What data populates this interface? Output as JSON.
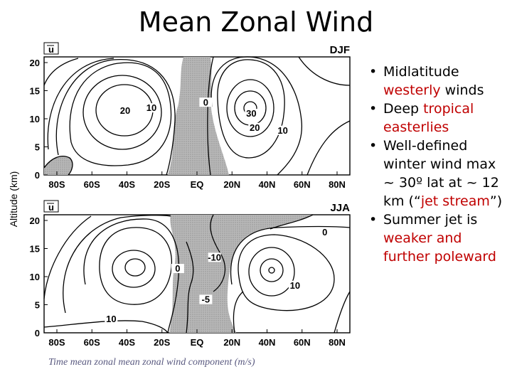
{
  "slide": {
    "title": "Mean Zonal Wind",
    "caption": "Time mean zonal mean zonal wind component (m/s)"
  },
  "figure": {
    "y_axis_label": "Altitude (km)",
    "y_ticks": [
      "0",
      "5",
      "10",
      "15",
      "20"
    ],
    "x_ticks": [
      "80S",
      "60S",
      "40S",
      "20S",
      "EQ",
      "20N",
      "40N",
      "60N",
      "80N"
    ],
    "panels": [
      {
        "variable_label": "u",
        "season": "DJF",
        "contour_labels": [
          {
            "text": "20",
            "lat": -41,
            "alt": 11
          },
          {
            "text": "10",
            "lat": -26,
            "alt": 11.5
          },
          {
            "text": "0",
            "lat": 5,
            "alt": 12.5
          },
          {
            "text": "30",
            "lat": 31,
            "alt": 10.5
          },
          {
            "text": "20",
            "lat": 33,
            "alt": 8
          },
          {
            "text": "10",
            "lat": 49,
            "alt": 7.5
          }
        ]
      },
      {
        "variable_label": "u",
        "season": "JJA",
        "contour_labels": [
          {
            "text": "0",
            "lat": -11,
            "alt": 11
          },
          {
            "text": "-10",
            "lat": 10,
            "alt": 13
          },
          {
            "text": "-5",
            "lat": 5,
            "alt": 5.5
          },
          {
            "text": "0",
            "lat": 73,
            "alt": 17.5
          },
          {
            "text": "10",
            "lat": 56,
            "alt": 8
          },
          {
            "text": "10",
            "lat": -49,
            "alt": 2
          }
        ]
      }
    ]
  },
  "bullets": [
    [
      {
        "t": "Midlatitude "
      },
      {
        "t": "westerly",
        "h": true
      },
      {
        "t": " winds"
      }
    ],
    [
      {
        "t": "Deep "
      },
      {
        "t": "tropical easterlies",
        "h": true
      }
    ],
    [
      {
        "t": "Well-defined winter wind max ~ 30º lat at ~ 12 km (“"
      },
      {
        "t": "jet stream",
        "h": true
      },
      {
        "t": "”)"
      }
    ],
    [
      {
        "t": "Summer jet is "
      },
      {
        "t": "weaker and further poleward",
        "h": true
      }
    ]
  ],
  "bullet_glyph": "•",
  "colors": {
    "highlight": "#c00000",
    "shading": "#a8a8a8",
    "caption": "#5a5a80"
  }
}
